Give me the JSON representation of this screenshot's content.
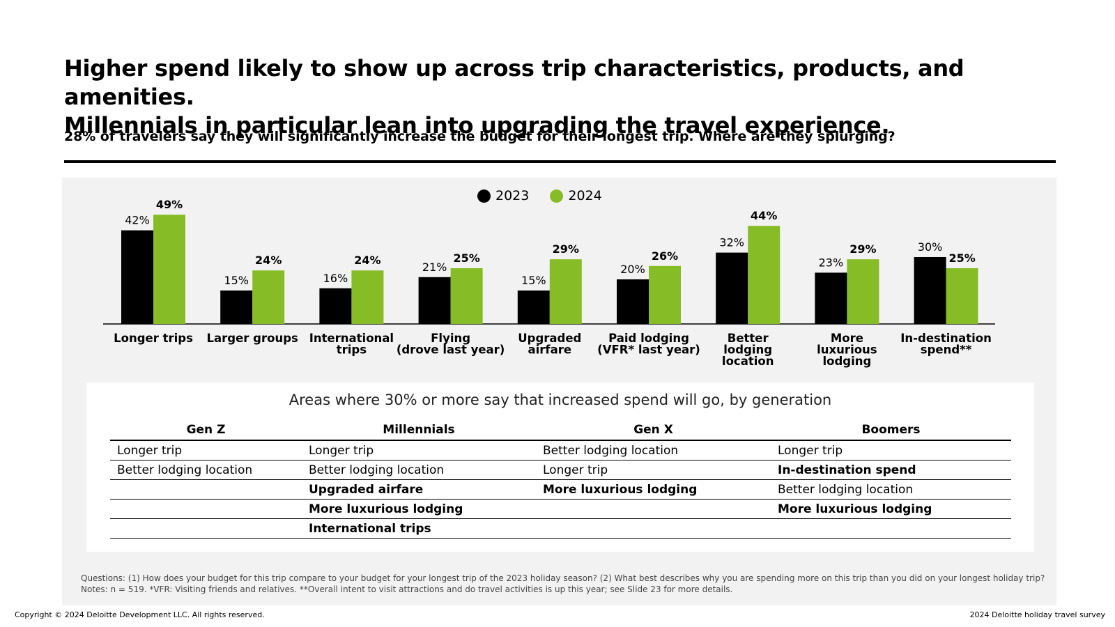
{
  "headline": {
    "line1": "Higher spend likely to show up across trip characteristics, products, and amenities.",
    "line2": "Millennials in particular lean into upgrading the travel experience."
  },
  "subtitle": "28% of travelers say they will significantly increase the budget for their longest trip. Where are they splurging?",
  "colors": {
    "series_2023": "#000000",
    "series_2024": "#86bc25",
    "panel_bg": "#f2f2f2"
  },
  "chart_data": {
    "type": "bar",
    "categories": [
      [
        "Longer trips"
      ],
      [
        "Larger groups"
      ],
      [
        "International",
        "trips"
      ],
      [
        "Flying",
        "(drove last year)"
      ],
      [
        "Upgraded",
        "airfare"
      ],
      [
        "Paid lodging",
        "(VFR* last year)"
      ],
      [
        "Better",
        "lodging",
        "location"
      ],
      [
        "More",
        "luxurious",
        "lodging"
      ],
      [
        "In-destination",
        "spend**"
      ]
    ],
    "series": [
      {
        "name": "2023",
        "values": [
          42,
          15,
          16,
          21,
          15,
          20,
          32,
          23,
          30
        ]
      },
      {
        "name": "2024",
        "values": [
          49,
          24,
          24,
          25,
          29,
          26,
          44,
          29,
          25
        ]
      }
    ],
    "value_suffix": "%",
    "bold_labels": [
      "2024",
      "2024",
      "2024",
      "2024",
      "2024",
      "2024",
      "2024",
      "2024",
      "2024"
    ],
    "ylim": [
      0,
      50
    ],
    "legend": "top-center",
    "grid": false
  },
  "table": {
    "title": "Areas where 30% or more say that increased spend will go, by generation",
    "headers": [
      "Gen Z",
      "Millennials",
      "Gen X",
      "Boomers"
    ],
    "rows": [
      [
        {
          "text": "Longer trip",
          "bold": false
        },
        {
          "text": "Longer trip",
          "bold": false
        },
        {
          "text": "Better lodging location",
          "bold": false
        },
        {
          "text": "Longer trip",
          "bold": false
        }
      ],
      [
        {
          "text": "Better lodging location",
          "bold": false
        },
        {
          "text": "Better lodging location",
          "bold": false
        },
        {
          "text": "Longer trip",
          "bold": false
        },
        {
          "text": "In-destination spend",
          "bold": true
        }
      ],
      [
        {
          "text": "",
          "bold": false
        },
        {
          "text": "Upgraded airfare",
          "bold": true
        },
        {
          "text": "More luxurious lodging",
          "bold": true
        },
        {
          "text": "Better lodging location",
          "bold": false
        }
      ],
      [
        {
          "text": "",
          "bold": false
        },
        {
          "text": "More luxurious lodging",
          "bold": true
        },
        {
          "text": "",
          "bold": false
        },
        {
          "text": "More luxurious lodging",
          "bold": true
        }
      ],
      [
        {
          "text": "",
          "bold": false
        },
        {
          "text": "International trips",
          "bold": true
        },
        {
          "text": "",
          "bold": false
        },
        {
          "text": "",
          "bold": false
        }
      ]
    ]
  },
  "notes": {
    "line1": "Questions: (1) How does your budget for this trip compare to your budget for your longest trip of the 2023 holiday season? (2) What best describes why you are spending more on this trip than you did on your longest holiday trip?",
    "line2": "Notes: n = 519. *VFR: Visiting friends and relatives. **Overall intent to visit attractions and do travel activities is up this year; see Slide 23 for more details."
  },
  "footer": {
    "copyright": "Copyright © 2024 Deloitte Development LLC. All rights reserved.",
    "source": "2024 Deloitte holiday travel survey"
  }
}
